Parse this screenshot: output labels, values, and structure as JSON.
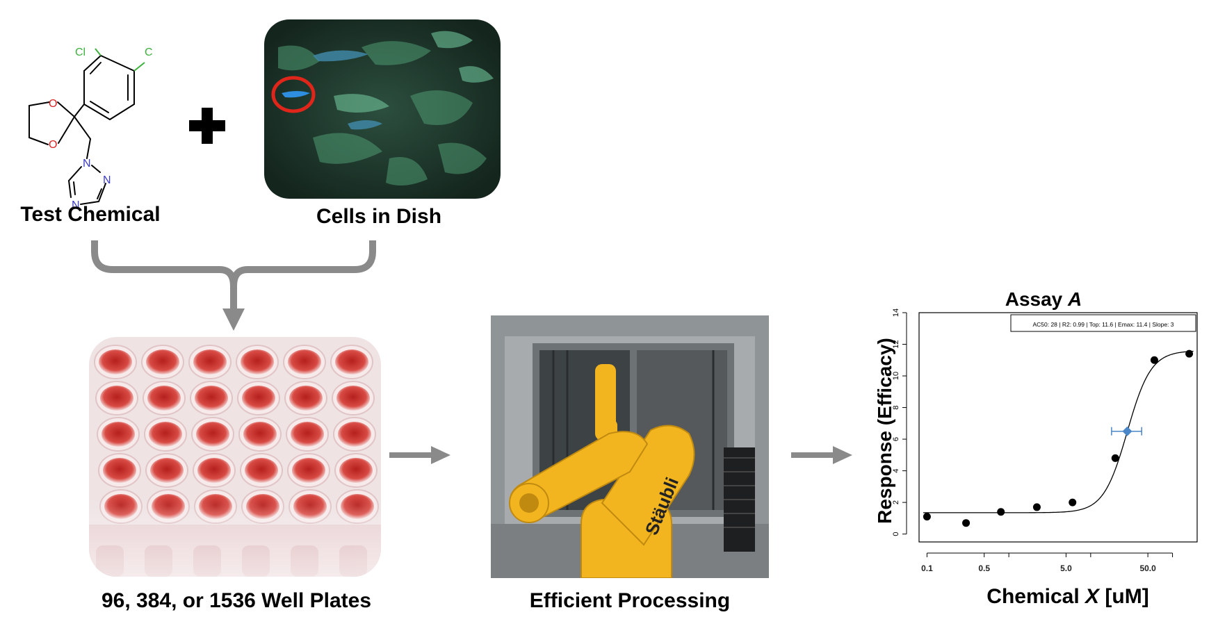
{
  "labels": {
    "test_chemical": "Test Chemical",
    "cells_in_dish": "Cells in Dish",
    "well_plates": "96, 384, or 1536 Well Plates",
    "efficient_processing": "Efficient Processing"
  },
  "molecule": {
    "atoms": {
      "cl1": "Cl",
      "cl2": "Cl",
      "o1": "O",
      "o2": "O",
      "n1": "N",
      "n2": "N",
      "n3": "N"
    }
  },
  "robot": {
    "brand_text": "Stäubli"
  },
  "colors": {
    "connector_gray": "#8a8a8a",
    "annotation_ring": "#e0261b",
    "well_liquid": "#c8332e",
    "robot_yellow": "#f2b51f",
    "chart_blue": "#4a86c8"
  },
  "chart_data": {
    "type": "scatter",
    "title_prefix": "Assay ",
    "title_emph": "A",
    "xlabel_prefix": "Chemical ",
    "xlabel_emph": "X",
    "xlabel_suffix": " [uM]",
    "ylabel": "Response (Efficacy)",
    "x_scale": "log",
    "xlim": [
      0.08,
      200
    ],
    "ylim": [
      -0.5,
      14
    ],
    "xticks": [
      {
        "value": 0.1,
        "label": "0.1"
      },
      {
        "value": 0.5,
        "label": "0.5"
      },
      {
        "value": 5.0,
        "label": "5.0"
      },
      {
        "value": 50.0,
        "label": "50.0"
      }
    ],
    "xminor": [
      1,
      10,
      100
    ],
    "yticks": [
      0,
      2,
      4,
      6,
      8,
      10,
      12,
      14
    ],
    "legend": "AC50: 28 | R2: 0.99 | Top: 11.6 | Emax: 11.4 | Slope: 3",
    "points": [
      {
        "x": 0.1,
        "y": 1.1
      },
      {
        "x": 0.3,
        "y": 0.7
      },
      {
        "x": 0.8,
        "y": 1.4
      },
      {
        "x": 2.2,
        "y": 1.7
      },
      {
        "x": 6.0,
        "y": 2.0
      },
      {
        "x": 20,
        "y": 4.8
      },
      {
        "x": 60,
        "y": 11.0
      },
      {
        "x": 160,
        "y": 11.4
      }
    ],
    "ac50": {
      "x": 28,
      "y": 6.5,
      "xerr": [
        18,
        42
      ]
    },
    "curve": {
      "bottom": 1.35,
      "top": 11.6,
      "ac50": 28,
      "slope": 3
    }
  }
}
